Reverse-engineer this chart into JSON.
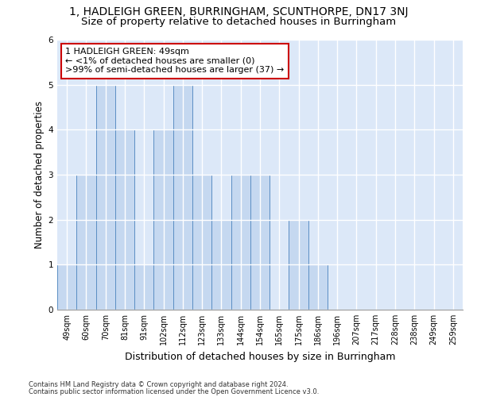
{
  "title": "1, HADLEIGH GREEN, BURRINGHAM, SCUNTHORPE, DN17 3NJ",
  "subtitle": "Size of property relative to detached houses in Burringham",
  "xlabel": "Distribution of detached houses by size in Burringham",
  "ylabel": "Number of detached properties",
  "categories": [
    "49sqm",
    "60sqm",
    "70sqm",
    "81sqm",
    "91sqm",
    "102sqm",
    "112sqm",
    "123sqm",
    "133sqm",
    "144sqm",
    "154sqm",
    "165sqm",
    "175sqm",
    "186sqm",
    "196sqm",
    "207sqm",
    "217sqm",
    "228sqm",
    "238sqm",
    "249sqm",
    "259sqm"
  ],
  "values": [
    1,
    3,
    5,
    4,
    1,
    4,
    5,
    3,
    2,
    3,
    3,
    0,
    2,
    1,
    0,
    0,
    0,
    0,
    0,
    0,
    0
  ],
  "bar_color": "#c5d8f0",
  "bar_edge_color": "#5b8ec4",
  "background_color": "#dce8f8",
  "grid_color": "#ffffff",
  "annotation_text": "1 HADLEIGH GREEN: 49sqm\n← <1% of detached houses are smaller (0)\n>99% of semi-detached houses are larger (37) →",
  "annotation_box_color": "#ffffff",
  "annotation_box_edge_color": "#cc0000",
  "ylim": [
    0,
    6
  ],
  "yticks": [
    0,
    1,
    2,
    3,
    4,
    5,
    6
  ],
  "footer1": "Contains HM Land Registry data © Crown copyright and database right 2024.",
  "footer2": "Contains public sector information licensed under the Open Government Licence v3.0.",
  "title_fontsize": 10,
  "subtitle_fontsize": 9.5,
  "xlabel_fontsize": 9,
  "ylabel_fontsize": 8.5,
  "tick_fontsize": 7,
  "annotation_fontsize": 8,
  "footer_fontsize": 6
}
